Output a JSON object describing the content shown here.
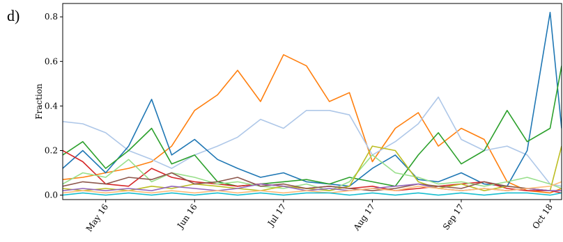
{
  "panel_label": "d)",
  "chart_data": {
    "type": "line",
    "title": "",
    "xlabel": "",
    "ylabel": "Fraction",
    "x_ticks": [
      "May 16",
      "Jun 16",
      "Jul 17",
      "Aug 17",
      "Sep 17",
      "Oct 18"
    ],
    "y_ticks": [
      "0.0",
      "0.2",
      "0.4",
      "0.6",
      "0.8"
    ],
    "ylim": [
      -0.02,
      0.86
    ],
    "x": [
      "May 01",
      "May 08",
      "May 16",
      "May 24",
      "Jun 01",
      "Jun 08",
      "Jun 16",
      "Jun 24",
      "Jul 01",
      "Jul 09",
      "Jul 17",
      "Jul 25",
      "Aug 02",
      "Aug 09",
      "Aug 17",
      "Aug 25",
      "Sep 02",
      "Sep 09",
      "Sep 17",
      "Sep 25",
      "Oct 03",
      "Oct 10",
      "Oct 18",
      "Oct 22"
    ],
    "grid": false,
    "legend": "none",
    "series": [
      {
        "color": "#ff7f0e",
        "values": [
          0.07,
          0.08,
          0.1,
          0.12,
          0.15,
          0.22,
          0.38,
          0.45,
          0.56,
          0.42,
          0.63,
          0.58,
          0.42,
          0.46,
          0.15,
          0.3,
          0.37,
          0.22,
          0.3,
          0.25,
          0.06,
          0.02,
          0.01,
          0.03
        ]
      },
      {
        "color": "#aec7e8",
        "values": [
          0.33,
          0.32,
          0.28,
          0.2,
          0.16,
          0.12,
          0.18,
          0.22,
          0.26,
          0.34,
          0.3,
          0.38,
          0.38,
          0.36,
          0.18,
          0.24,
          0.32,
          0.44,
          0.25,
          0.2,
          0.22,
          0.18,
          0.05,
          0.04
        ]
      },
      {
        "color": "#1f77b4",
        "values": [
          0.12,
          0.2,
          0.1,
          0.22,
          0.43,
          0.18,
          0.25,
          0.16,
          0.12,
          0.08,
          0.1,
          0.06,
          0.05,
          0.04,
          0.12,
          0.18,
          0.07,
          0.06,
          0.1,
          0.05,
          0.04,
          0.2,
          0.82,
          0.3
        ]
      },
      {
        "color": "#2ca02c",
        "values": [
          0.18,
          0.24,
          0.12,
          0.2,
          0.3,
          0.14,
          0.18,
          0.06,
          0.04,
          0.05,
          0.06,
          0.07,
          0.05,
          0.08,
          0.06,
          0.04,
          0.18,
          0.28,
          0.14,
          0.2,
          0.38,
          0.24,
          0.3,
          0.58
        ]
      },
      {
        "color": "#d62728",
        "values": [
          0.2,
          0.15,
          0.05,
          0.04,
          0.12,
          0.08,
          0.06,
          0.05,
          0.04,
          0.05,
          0.04,
          0.03,
          0.04,
          0.03,
          0.04,
          0.02,
          0.03,
          0.04,
          0.05,
          0.06,
          0.03,
          0.02,
          0.02,
          0.01
        ]
      },
      {
        "color": "#98df8a",
        "values": [
          0.05,
          0.1,
          0.08,
          0.16,
          0.06,
          0.1,
          0.08,
          0.05,
          0.06,
          0.04,
          0.03,
          0.05,
          0.02,
          0.06,
          0.18,
          0.1,
          0.08,
          0.05,
          0.06,
          0.04,
          0.06,
          0.08,
          0.05,
          0.03
        ]
      },
      {
        "color": "#bcbd22",
        "values": [
          0.03,
          0.02,
          0.03,
          0.02,
          0.04,
          0.03,
          0.05,
          0.04,
          0.03,
          0.02,
          0.04,
          0.03,
          0.02,
          0.04,
          0.22,
          0.2,
          0.06,
          0.03,
          0.05,
          0.02,
          0.04,
          0.03,
          0.02,
          0.22
        ]
      },
      {
        "color": "#8c564b",
        "values": [
          0.04,
          0.06,
          0.05,
          0.08,
          0.07,
          0.1,
          0.05,
          0.06,
          0.08,
          0.04,
          0.05,
          0.03,
          0.04,
          0.03,
          0.02,
          0.03,
          0.05,
          0.04,
          0.03,
          0.06,
          0.04,
          0.03,
          0.02,
          0.02
        ]
      },
      {
        "color": "#9467bd",
        "values": [
          0.02,
          0.03,
          0.02,
          0.03,
          0.02,
          0.04,
          0.03,
          0.02,
          0.03,
          0.05,
          0.04,
          0.02,
          0.03,
          0.02,
          0.03,
          0.04,
          0.05,
          0.03,
          0.02,
          0.03,
          0.02,
          0.03,
          0.02,
          0.02
        ]
      },
      {
        "color": "#ffbb78",
        "values": [
          0.01,
          0.02,
          0.01,
          0.02,
          0.01,
          0.02,
          0.01,
          0.02,
          0.01,
          0.02,
          0.01,
          0.02,
          0.01,
          0.02,
          0.03,
          0.02,
          0.04,
          0.03,
          0.02,
          0.03,
          0.02,
          0.03,
          0.04,
          0.06
        ]
      },
      {
        "color": "#17becf",
        "values": [
          0.0,
          0.01,
          0.0,
          0.01,
          0.0,
          0.01,
          0.0,
          0.01,
          0.0,
          0.01,
          0.0,
          0.01,
          0.01,
          0.0,
          0.01,
          0.0,
          0.01,
          0.0,
          0.01,
          0.0,
          0.01,
          0.01,
          0.0,
          0.01
        ]
      }
    ]
  }
}
